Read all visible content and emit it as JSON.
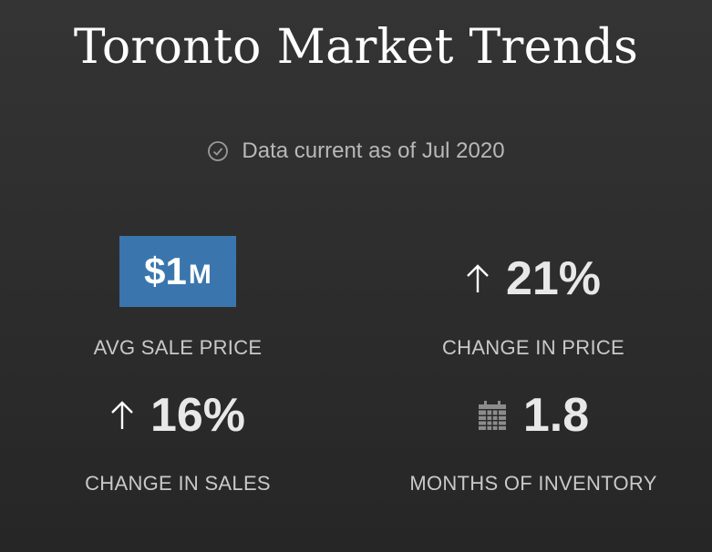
{
  "header": {
    "title": "Toronto Market Trends",
    "data_current": "Data current as of Jul 2020"
  },
  "stats": {
    "avg_sale_price": {
      "value": "$1",
      "suffix": "M",
      "label": "AVG SALE PRICE"
    },
    "change_in_price": {
      "value": "21%",
      "direction": "up",
      "label": "CHANGE IN PRICE"
    },
    "change_in_sales": {
      "value": "16%",
      "direction": "up",
      "label": "CHANGE IN SALES"
    },
    "months_of_inventory": {
      "value": "1.8",
      "label": "MONTHS OF INVENTORY"
    }
  },
  "icons": {
    "check": "check-circle-icon",
    "arrow": "arrow-up-icon",
    "calendar": "calendar-icon"
  },
  "colors": {
    "badge_bg": "#3a76ad",
    "text_muted": "#c9c9c9"
  }
}
